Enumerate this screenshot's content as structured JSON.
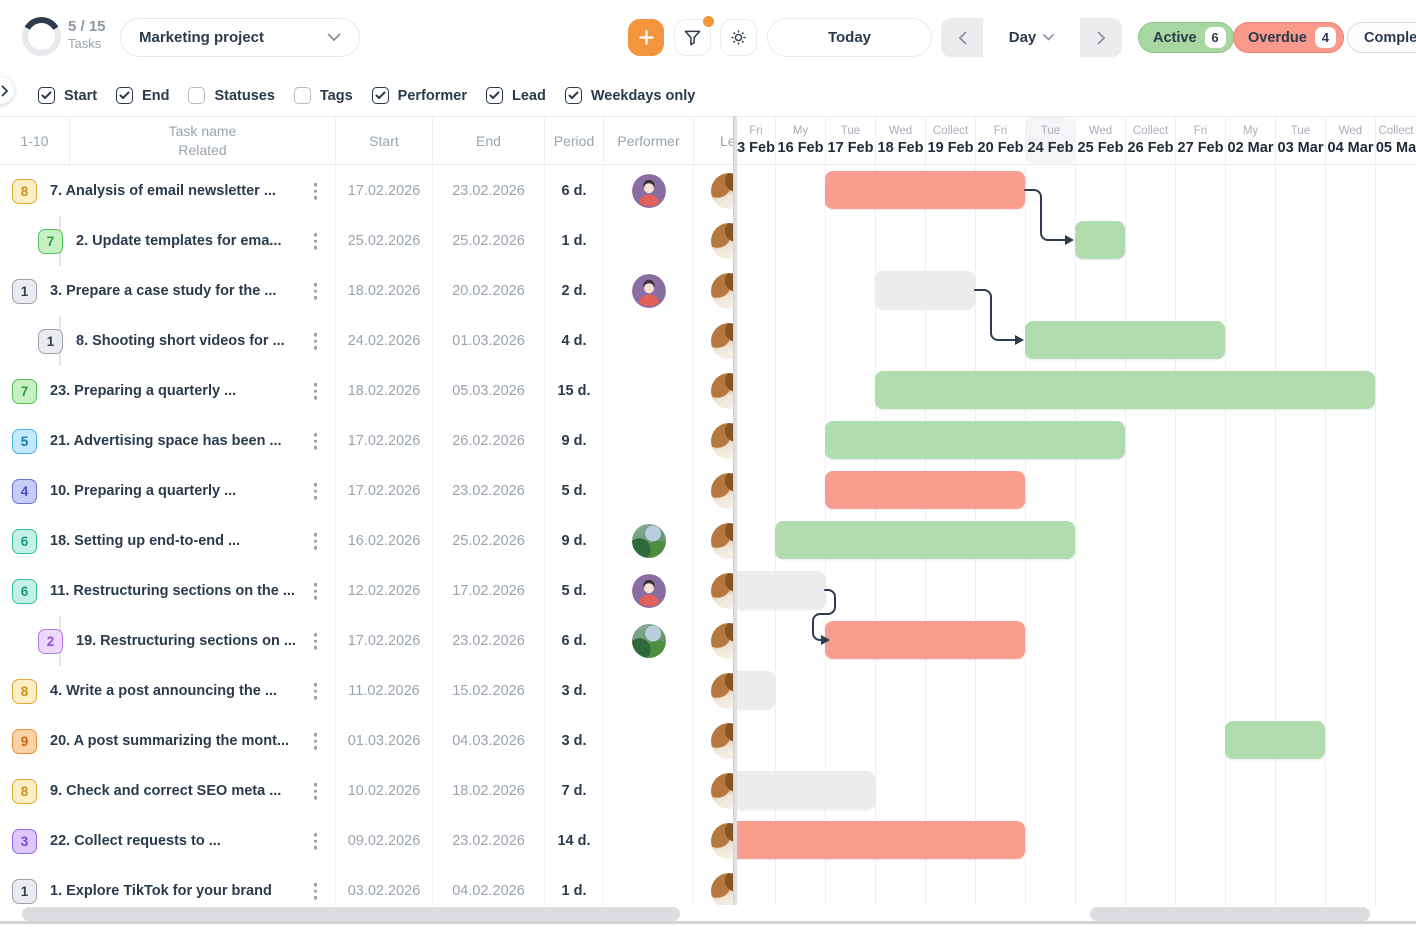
{
  "topbar": {
    "progress": {
      "count": "5 / 15",
      "label": "Tasks",
      "percent": 33
    },
    "project": {
      "name": "Marketing project"
    },
    "today_label": "Today",
    "zoom": {
      "level": "Day"
    },
    "pills": [
      {
        "label": "Active",
        "count": "6"
      },
      {
        "label": "Overdue",
        "count": "4"
      },
      {
        "label": "Comple",
        "count": ""
      }
    ]
  },
  "filters": {
    "items": [
      {
        "label": "Start",
        "checked": true
      },
      {
        "label": "End",
        "checked": true
      },
      {
        "label": "Statuses",
        "checked": false
      },
      {
        "label": "Tags",
        "checked": false
      },
      {
        "label": "Performer",
        "checked": true
      },
      {
        "label": "Lead",
        "checked": true
      },
      {
        "label": "Weekdays only",
        "checked": true
      }
    ]
  },
  "table": {
    "range": "1-10",
    "headers": {
      "name1": "Task name",
      "name2": "Related",
      "start": "Start",
      "end": "End",
      "period": "Period",
      "performer": "Performer",
      "lead": "Lead"
    }
  },
  "gantt": {
    "today_index": 6,
    "days": [
      {
        "dow": "Fri",
        "date": "3 Feb"
      },
      {
        "dow": "My",
        "date": "16 Feb"
      },
      {
        "dow": "Tue",
        "date": "17 Feb"
      },
      {
        "dow": "Wed",
        "date": "18 Feb"
      },
      {
        "dow": "Collect",
        "date": "19 Feb"
      },
      {
        "dow": "Fri",
        "date": "20 Feb"
      },
      {
        "dow": "Tue",
        "date": "24 Feb"
      },
      {
        "dow": "Wed",
        "date": "25 Feb"
      },
      {
        "dow": "Collect",
        "date": "26 Feb"
      },
      {
        "dow": "Fri",
        "date": "27 Feb"
      },
      {
        "dow": "My",
        "date": "02 Mar"
      },
      {
        "dow": "Tue",
        "date": "03 Mar"
      },
      {
        "dow": "Wed",
        "date": "04 Mar"
      },
      {
        "dow": "Collect",
        "date": "05 Ma"
      }
    ]
  },
  "tasks": [
    {
      "wbs": "8",
      "badge_color": "amber",
      "child": false,
      "name": "7. Analysis of email newsletter ...",
      "start": "17.02.2026",
      "end": "23.02.2026",
      "period": "6 d.",
      "performer": "person-purple",
      "lead": "photo",
      "bar": {
        "color": "red",
        "s": 2,
        "e": 6,
        "clip": false
      }
    },
    {
      "wbs": "7",
      "badge_color": "green",
      "child": true,
      "name": "2. Update templates for ema...",
      "start": "25.02.2026",
      "end": "25.02.2026",
      "period": "1 d.",
      "performer": null,
      "lead": "photo",
      "bar": {
        "color": "green",
        "s": 7,
        "e": 8,
        "clip": false
      }
    },
    {
      "wbs": "1",
      "badge_color": "gray",
      "child": false,
      "name": "3. Prepare a case study for the ...",
      "start": "18.02.2026",
      "end": "20.02.2026",
      "period": "2 d.",
      "performer": "person-purple",
      "lead": "photo",
      "bar": {
        "color": "gray",
        "s": 3,
        "e": 5,
        "clip": false
      }
    },
    {
      "wbs": "1",
      "badge_color": "gray",
      "child": true,
      "name": "8. Shooting short videos for ...",
      "start": "24.02.2026",
      "end": "01.03.2026",
      "period": "4 d.",
      "performer": null,
      "lead": "photo",
      "bar": {
        "color": "green",
        "s": 6,
        "e": 10,
        "clip": false
      }
    },
    {
      "wbs": "7",
      "badge_color": "green",
      "child": false,
      "name": "23. Preparing a quarterly ...",
      "start": "18.02.2026",
      "end": "05.03.2026",
      "period": "15 d.",
      "performer": null,
      "lead": "photo",
      "bar": {
        "color": "green",
        "s": 3,
        "e": 13,
        "clip": false
      }
    },
    {
      "wbs": "5",
      "badge_color": "cyan",
      "child": false,
      "name": "21. Advertising space has been ...",
      "start": "17.02.2026",
      "end": "26.02.2026",
      "period": "9 d.",
      "performer": null,
      "lead": "photo",
      "bar": {
        "color": "green",
        "s": 2,
        "e": 8,
        "clip": false
      }
    },
    {
      "wbs": "4",
      "badge_color": "indigo",
      "child": false,
      "name": "10. Preparing a quarterly ...",
      "start": "17.02.2026",
      "end": "23.02.2026",
      "period": "5 d.",
      "performer": null,
      "lead": "photo",
      "bar": {
        "color": "red",
        "s": 2,
        "e": 6,
        "clip": false
      }
    },
    {
      "wbs": "6",
      "badge_color": "teal",
      "child": false,
      "name": "18. Setting up end-to-end ...",
      "start": "16.02.2026",
      "end": "25.02.2026",
      "period": "9 d.",
      "performer": "nature-photo",
      "lead": "photo",
      "bar": {
        "color": "green",
        "s": 1,
        "e": 7,
        "clip": false
      }
    },
    {
      "wbs": "6",
      "badge_color": "teal",
      "child": false,
      "name": "11. Restructuring sections on the ...",
      "start": "12.02.2026",
      "end": "17.02.2026",
      "period": "5 d.",
      "performer": "person-purple",
      "lead": "photo",
      "bar": {
        "color": "gray",
        "s": 0,
        "e": 2,
        "clip": true
      }
    },
    {
      "wbs": "2",
      "badge_color": "lilac",
      "child": true,
      "name": "19. Restructuring sections on ...",
      "start": "17.02.2026",
      "end": "23.02.2026",
      "period": "6 d.",
      "performer": "nature-photo",
      "lead": "photo",
      "bar": {
        "color": "red",
        "s": 2,
        "e": 6,
        "clip": false
      }
    },
    {
      "wbs": "8",
      "badge_color": "amber",
      "child": false,
      "name": "4. Write a post announcing the ...",
      "start": "11.02.2026",
      "end": "15.02.2026",
      "period": "3 d.",
      "performer": null,
      "lead": "photo",
      "bar": {
        "color": "gray",
        "s": 0,
        "e": 1,
        "clip": true
      }
    },
    {
      "wbs": "9",
      "badge_color": "orange",
      "child": false,
      "name": "20. A post summarizing the mont...",
      "start": "01.03.2026",
      "end": "04.03.2026",
      "period": "3 d.",
      "performer": null,
      "lead": "photo",
      "bar": {
        "color": "green",
        "s": 10,
        "e": 12,
        "clip": false
      }
    },
    {
      "wbs": "8",
      "badge_color": "amber",
      "child": false,
      "name": "9. Check and correct SEO meta ...",
      "start": "10.02.2026",
      "end": "18.02.2026",
      "period": "7 d.",
      "performer": null,
      "lead": "photo",
      "bar": {
        "color": "gray",
        "s": 0,
        "e": 3,
        "clip": true
      }
    },
    {
      "wbs": "3",
      "badge_color": "purple",
      "child": false,
      "name": "22. Collect requests to ...",
      "start": "09.02.2026",
      "end": "23.02.2026",
      "period": "14 d.",
      "performer": null,
      "lead": "photo",
      "bar": {
        "color": "red",
        "s": 0,
        "e": 6,
        "clip": true
      }
    },
    {
      "wbs": "1",
      "badge_color": "gray",
      "child": false,
      "name": "1. Explore TikTok for your brand",
      "start": "03.02.2026",
      "end": "04.02.2026",
      "period": "1 d.",
      "performer": null,
      "lead": "photo",
      "bar": null
    }
  ],
  "connectors": [
    {
      "from": 0,
      "to": 1
    },
    {
      "from": 2,
      "to": 3
    },
    {
      "from": 8,
      "to": 9
    }
  ],
  "colors": {
    "accent_orange": "#f2953c",
    "bar_red": "#fa9d8f",
    "bar_green": "#b1ddae",
    "bar_gray": "#ececef",
    "connector": "#2e3b4e",
    "pill_active_bg": "#a7d8a2",
    "pill_overdue_bg": "#f8998c"
  }
}
